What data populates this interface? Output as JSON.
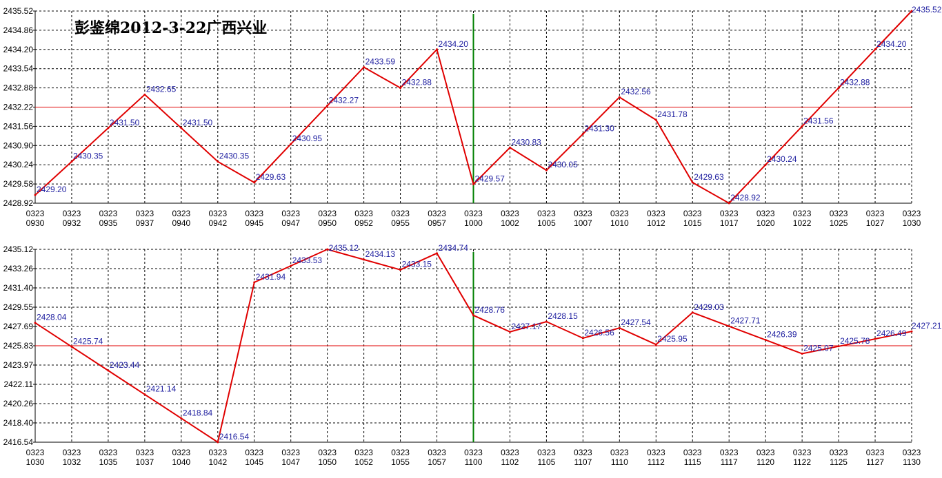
{
  "title": "彭鉴绵2012-3-22广西兴业",
  "colors": {
    "series": "#e00000",
    "reference_line": "#e00000",
    "marker_line": "#008000",
    "grid": "#000000",
    "axis": "#000000",
    "data_label": "#1f1fa0"
  },
  "chart_data": [
    {
      "type": "line",
      "grid": true,
      "ylim": [
        2428.92,
        2435.52
      ],
      "y_ticks": [
        "2435.52",
        "2434.86",
        "2434.20",
        "2433.54",
        "2432.88",
        "2432.22",
        "2431.56",
        "2430.90",
        "2430.24",
        "2429.58",
        "2428.92"
      ],
      "x_ticks": [
        {
          "top": "0323",
          "bottom": "0930"
        },
        {
          "top": "0323",
          "bottom": "0932"
        },
        {
          "top": "0323",
          "bottom": "0935"
        },
        {
          "top": "0323",
          "bottom": "0937"
        },
        {
          "top": "0323",
          "bottom": "0940"
        },
        {
          "top": "0323",
          "bottom": "0942"
        },
        {
          "top": "0323",
          "bottom": "0945"
        },
        {
          "top": "0323",
          "bottom": "0947"
        },
        {
          "top": "0323",
          "bottom": "0950"
        },
        {
          "top": "0323",
          "bottom": "0952"
        },
        {
          "top": "0323",
          "bottom": "0955"
        },
        {
          "top": "0323",
          "bottom": "0957"
        },
        {
          "top": "0323",
          "bottom": "1000"
        },
        {
          "top": "0323",
          "bottom": "1002"
        },
        {
          "top": "0323",
          "bottom": "1005"
        },
        {
          "top": "0323",
          "bottom": "1007"
        },
        {
          "top": "0323",
          "bottom": "1010"
        },
        {
          "top": "0323",
          "bottom": "1012"
        },
        {
          "top": "0323",
          "bottom": "1015"
        },
        {
          "top": "0323",
          "bottom": "1017"
        },
        {
          "top": "0323",
          "bottom": "1020"
        },
        {
          "top": "0323",
          "bottom": "1022"
        },
        {
          "top": "0323",
          "bottom": "1025"
        },
        {
          "top": "0323",
          "bottom": "1027"
        },
        {
          "top": "0323",
          "bottom": "1030"
        }
      ],
      "values": [
        2429.2,
        2430.35,
        2431.5,
        2432.65,
        2431.5,
        2430.35,
        2429.63,
        2430.95,
        2432.27,
        2433.59,
        2432.88,
        2434.2,
        2429.57,
        2430.83,
        2430.05,
        2431.3,
        2432.56,
        2431.78,
        2429.63,
        2428.92,
        2430.24,
        2431.56,
        2432.88,
        2434.2,
        2435.52
      ],
      "labels": [
        "2429.20",
        "2430.35",
        "2431.50",
        "2432.65",
        "2431.50",
        "2430.35",
        "2429.63",
        "2430.95",
        "2432.27",
        "2433.59",
        "2432.88",
        "2434.20",
        "2429.57",
        "2430.83",
        "2430.05",
        "2431.30",
        "2432.56",
        "2431.78",
        "2429.63",
        "2428.92",
        "2430.24",
        "2431.56",
        "2432.88",
        "2434.20",
        "2435.52"
      ],
      "reference_value": 2432.22,
      "marker_index": 12
    },
    {
      "type": "line",
      "grid": true,
      "ylim": [
        2416.54,
        2435.12
      ],
      "y_ticks": [
        "2435.12",
        "2433.26",
        "2431.40",
        "2429.55",
        "2427.69",
        "2425.83",
        "2423.97",
        "2422.11",
        "2420.26",
        "2418.40",
        "2416.54"
      ],
      "x_ticks": [
        {
          "top": "0323",
          "bottom": "1030"
        },
        {
          "top": "0323",
          "bottom": "1032"
        },
        {
          "top": "0323",
          "bottom": "1035"
        },
        {
          "top": "0323",
          "bottom": "1037"
        },
        {
          "top": "0323",
          "bottom": "1040"
        },
        {
          "top": "0323",
          "bottom": "1042"
        },
        {
          "top": "0323",
          "bottom": "1045"
        },
        {
          "top": "0323",
          "bottom": "1047"
        },
        {
          "top": "0323",
          "bottom": "1050"
        },
        {
          "top": "0323",
          "bottom": "1052"
        },
        {
          "top": "0323",
          "bottom": "1055"
        },
        {
          "top": "0323",
          "bottom": "1057"
        },
        {
          "top": "0323",
          "bottom": "1100"
        },
        {
          "top": "0323",
          "bottom": "1102"
        },
        {
          "top": "0323",
          "bottom": "1105"
        },
        {
          "top": "0323",
          "bottom": "1107"
        },
        {
          "top": "0323",
          "bottom": "1110"
        },
        {
          "top": "0323",
          "bottom": "1112"
        },
        {
          "top": "0323",
          "bottom": "1115"
        },
        {
          "top": "0323",
          "bottom": "1117"
        },
        {
          "top": "0323",
          "bottom": "1120"
        },
        {
          "top": "0323",
          "bottom": "1122"
        },
        {
          "top": "0323",
          "bottom": "1125"
        },
        {
          "top": "0323",
          "bottom": "1127"
        },
        {
          "top": "0323",
          "bottom": "1130"
        }
      ],
      "values": [
        2428.04,
        2425.74,
        2423.44,
        2421.14,
        2418.84,
        2416.54,
        2431.94,
        2433.53,
        2435.12,
        2434.13,
        2433.15,
        2434.74,
        2428.76,
        2427.17,
        2428.15,
        2426.56,
        2427.54,
        2425.95,
        2429.03,
        2427.71,
        2426.39,
        2425.07,
        2425.78,
        2426.49,
        2427.21
      ],
      "labels": [
        "2428.04",
        "2425.74",
        "2423.44",
        "2421.14",
        "2418.84",
        "2416.54",
        "2431.94",
        "2433.53",
        "2435.12",
        "2434.13",
        "2433.15",
        "2434.74",
        "2428.76",
        "2427.17",
        "2428.15",
        "2426.56",
        "2427.54",
        "2425.95",
        "2429.03",
        "2427.71",
        "2426.39",
        "2425.07",
        "2425.78",
        "2426.49",
        "2427.21"
      ],
      "reference_value": 2425.83,
      "marker_index": 12
    }
  ]
}
